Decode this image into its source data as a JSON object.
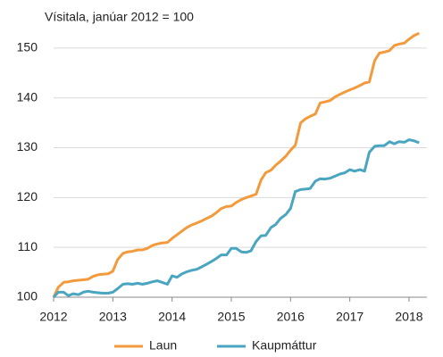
{
  "chart_data": {
    "type": "line",
    "title": "Vísitala, janúar 2012 = 100",
    "x": [
      2012,
      2012.08,
      2012.17,
      2012.25,
      2012.33,
      2012.42,
      2012.5,
      2012.58,
      2012.67,
      2012.75,
      2012.83,
      2012.92,
      2013,
      2013.08,
      2013.17,
      2013.25,
      2013.33,
      2013.42,
      2013.5,
      2013.58,
      2013.67,
      2013.75,
      2013.83,
      2013.92,
      2014,
      2014.08,
      2014.17,
      2014.25,
      2014.33,
      2014.42,
      2014.5,
      2014.58,
      2014.67,
      2014.75,
      2014.83,
      2014.92,
      2015,
      2015.08,
      2015.17,
      2015.25,
      2015.33,
      2015.42,
      2015.5,
      2015.58,
      2015.67,
      2015.75,
      2015.83,
      2015.92,
      2016,
      2016.08,
      2016.17,
      2016.25,
      2016.33,
      2016.42,
      2016.5,
      2016.58,
      2016.67,
      2016.75,
      2016.83,
      2016.92,
      2017,
      2017.08,
      2017.17,
      2017.25,
      2017.33,
      2017.42,
      2017.5,
      2017.58,
      2017.67,
      2017.75,
      2017.83,
      2017.92,
      2018,
      2018.08,
      2018.17
    ],
    "series": [
      {
        "name": "Laun",
        "color": "#f39a3c",
        "values": [
          100,
          102,
          103,
          103.1,
          103.3,
          103.4,
          103.5,
          103.6,
          104.2,
          104.5,
          104.6,
          104.7,
          105.2,
          107.5,
          108.8,
          109.1,
          109.2,
          109.5,
          109.5,
          109.8,
          110.4,
          110.7,
          110.9,
          111,
          111.8,
          112.5,
          113.3,
          114,
          114.5,
          114.9,
          115.3,
          115.8,
          116.3,
          117,
          117.8,
          118.2,
          118.3,
          119,
          119.6,
          120,
          120.3,
          120.7,
          123.5,
          125,
          125.5,
          126.5,
          127.3,
          128.3,
          129.5,
          130.5,
          135,
          135.8,
          136.3,
          136.8,
          139,
          139.2,
          139.5,
          140.2,
          140.7,
          141.2,
          141.6,
          142,
          142.5,
          143,
          143.2,
          147.5,
          149,
          149.2,
          149.5,
          150.5,
          150.8,
          151,
          151.8,
          152.5,
          153
        ]
      },
      {
        "name": "Kaupmáttur",
        "color": "#4aa6c0",
        "values": [
          100,
          101,
          101,
          100.3,
          100.7,
          100.5,
          101,
          101.2,
          101,
          100.9,
          100.8,
          100.8,
          101,
          101.7,
          102.6,
          102.7,
          102.6,
          102.8,
          102.6,
          102.8,
          103.1,
          103.3,
          103,
          102.6,
          104.3,
          104,
          104.7,
          105.1,
          105.4,
          105.6,
          106.1,
          106.6,
          107.2,
          107.8,
          108.5,
          108.5,
          109.8,
          109.8,
          109.1,
          109,
          109.3,
          111.2,
          112.3,
          112.4,
          114,
          114.6,
          115.8,
          116.6,
          117.8,
          121.2,
          121.6,
          121.7,
          121.8,
          123.3,
          123.8,
          123.7,
          123.9,
          124.3,
          124.7,
          125,
          125.6,
          125.3,
          125.6,
          125.3,
          129.1,
          130.3,
          130.4,
          130.4,
          131.2,
          130.8,
          131.2,
          131.1,
          131.6,
          131.4,
          131
        ]
      }
    ],
    "xlim": [
      2012,
      2018.3
    ],
    "xticks": [
      2012,
      2013,
      2014,
      2015,
      2016,
      2017,
      2018
    ],
    "ylim": [
      100,
      155
    ],
    "yticks": [
      100,
      110,
      120,
      130,
      140,
      150
    ],
    "grid": true,
    "legend": "bottom"
  }
}
